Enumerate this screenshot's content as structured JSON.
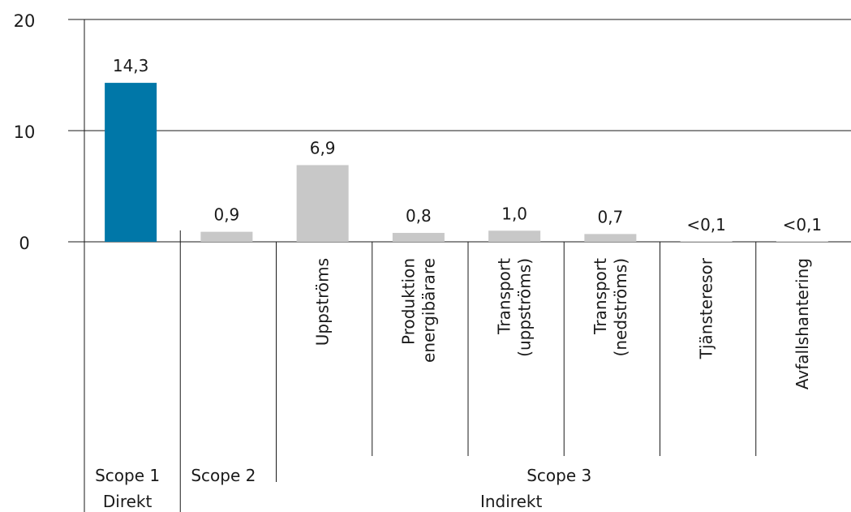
{
  "chart_data": {
    "type": "bar",
    "title": "",
    "xlabel": "",
    "ylabel": "",
    "ylim": [
      0,
      20
    ],
    "yticks": [
      0,
      10,
      20
    ],
    "grid": true,
    "categories": [
      "",
      "",
      "Uppströms",
      "Produktion energibärare",
      "Transport (uppströms)",
      "Transport (nedströms)",
      "Tjänsteresor",
      "Avfallshantering"
    ],
    "category_lines": [
      [],
      [],
      [
        "Uppströms"
      ],
      [
        "Produktion",
        "energibärare"
      ],
      [
        "Transport",
        "(uppströms)"
      ],
      [
        "Transport",
        "(nedströms)"
      ],
      [
        "Tjänsteresor"
      ],
      [
        "Avfallshantering"
      ]
    ],
    "values": [
      14.3,
      0.9,
      6.9,
      0.8,
      1.0,
      0.7,
      0.05,
      0.05
    ],
    "value_labels": [
      "14,3",
      "0,9",
      "6,9",
      "0,8",
      "1,0",
      "0,7",
      "<0,1",
      "<0,1"
    ],
    "bar_colors": [
      "#0077a8",
      "#c8c8c8",
      "#c8c8c8",
      "#c8c8c8",
      "#c8c8c8",
      "#c8c8c8",
      "#c8c8c8",
      "#c8c8c8"
    ],
    "groups": [
      {
        "scope": "Scope 1",
        "type": "Direkt",
        "from": 0,
        "to": 0
      },
      {
        "scope": "Scope 2",
        "type": "",
        "from": 1,
        "to": 1
      },
      {
        "scope": "Scope 3",
        "type": "",
        "from": 2,
        "to": 7
      }
    ],
    "indirect_label": "Indirekt",
    "indirect_from": 1,
    "indirect_to": 7
  }
}
